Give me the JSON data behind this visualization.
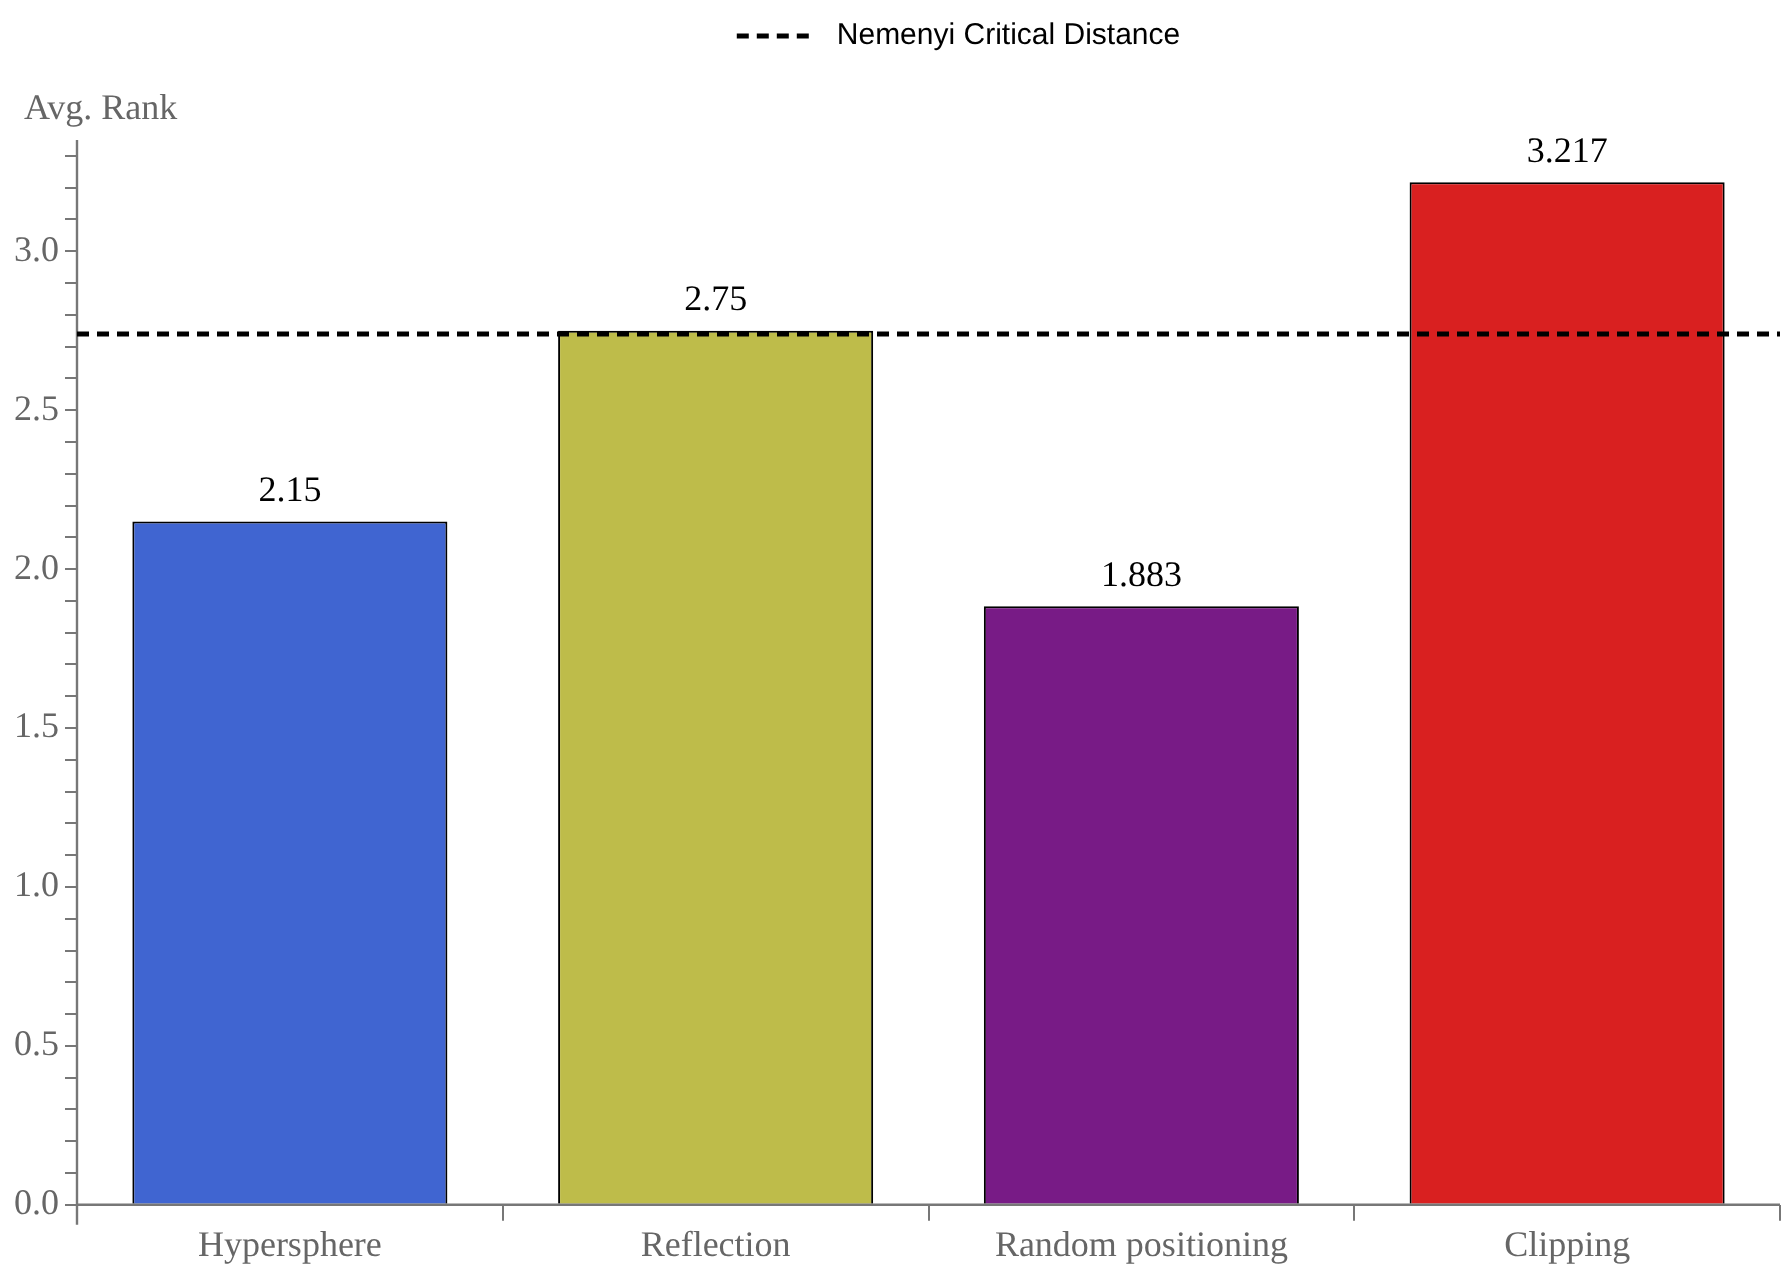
{
  "chart_data": {
    "type": "bar",
    "ylabel": "Avg. Rank",
    "legend": "top",
    "grid": false,
    "data_labels": true,
    "categories": [
      "Hypersphere",
      "Reflection",
      "Random positioning",
      "Clipping"
    ],
    "values": [
      2.15,
      2.75,
      1.883,
      3.217
    ],
    "colors": [
      "#4065d1",
      "#bebc4a",
      "#781b86",
      "#d92020"
    ],
    "ylim": [
      0,
      3.35
    ],
    "yticks": [
      {
        "value": 0,
        "label": "0.0"
      },
      {
        "value": 0.1,
        "label": null
      },
      {
        "value": 0.2,
        "label": null
      },
      {
        "value": 0.3,
        "label": null
      },
      {
        "value": 0.4,
        "label": null
      },
      {
        "value": 0.5,
        "label": "0.5"
      },
      {
        "value": 0.6,
        "label": null
      },
      {
        "value": 0.7,
        "label": null
      },
      {
        "value": 0.8,
        "label": null
      },
      {
        "value": 0.9,
        "label": null
      },
      {
        "value": 1,
        "label": "1.0"
      },
      {
        "value": 1.1,
        "label": null
      },
      {
        "value": 1.2,
        "label": null
      },
      {
        "value": 1.3,
        "label": null
      },
      {
        "value": 1.4,
        "label": null
      },
      {
        "value": 1.5,
        "label": "1.5"
      },
      {
        "value": 1.6,
        "label": null
      },
      {
        "value": 1.7,
        "label": null
      },
      {
        "value": 1.8,
        "label": null
      },
      {
        "value": 1.9,
        "label": null
      },
      {
        "value": 2,
        "label": "2.0"
      },
      {
        "value": 2.1,
        "label": null
      },
      {
        "value": 2.2,
        "label": null
      },
      {
        "value": 2.3,
        "label": null
      },
      {
        "value": 2.4,
        "label": null
      },
      {
        "value": 2.5,
        "label": "2.5"
      },
      {
        "value": 2.6,
        "label": null
      },
      {
        "value": 2.7,
        "label": null
      },
      {
        "value": 2.8,
        "label": null
      },
      {
        "value": 2.9,
        "label": null
      },
      {
        "value": 3,
        "label": "3.0"
      },
      {
        "value": 3.1,
        "label": null
      },
      {
        "value": 3.2,
        "label": null
      },
      {
        "value": 3.3,
        "label": null
      }
    ],
    "ref_lines": [
      {
        "axis": "y",
        "value": 2.74,
        "label": "Nemenyi Critical Distance",
        "color": "#000000",
        "line_style": "dashed"
      }
    ]
  }
}
